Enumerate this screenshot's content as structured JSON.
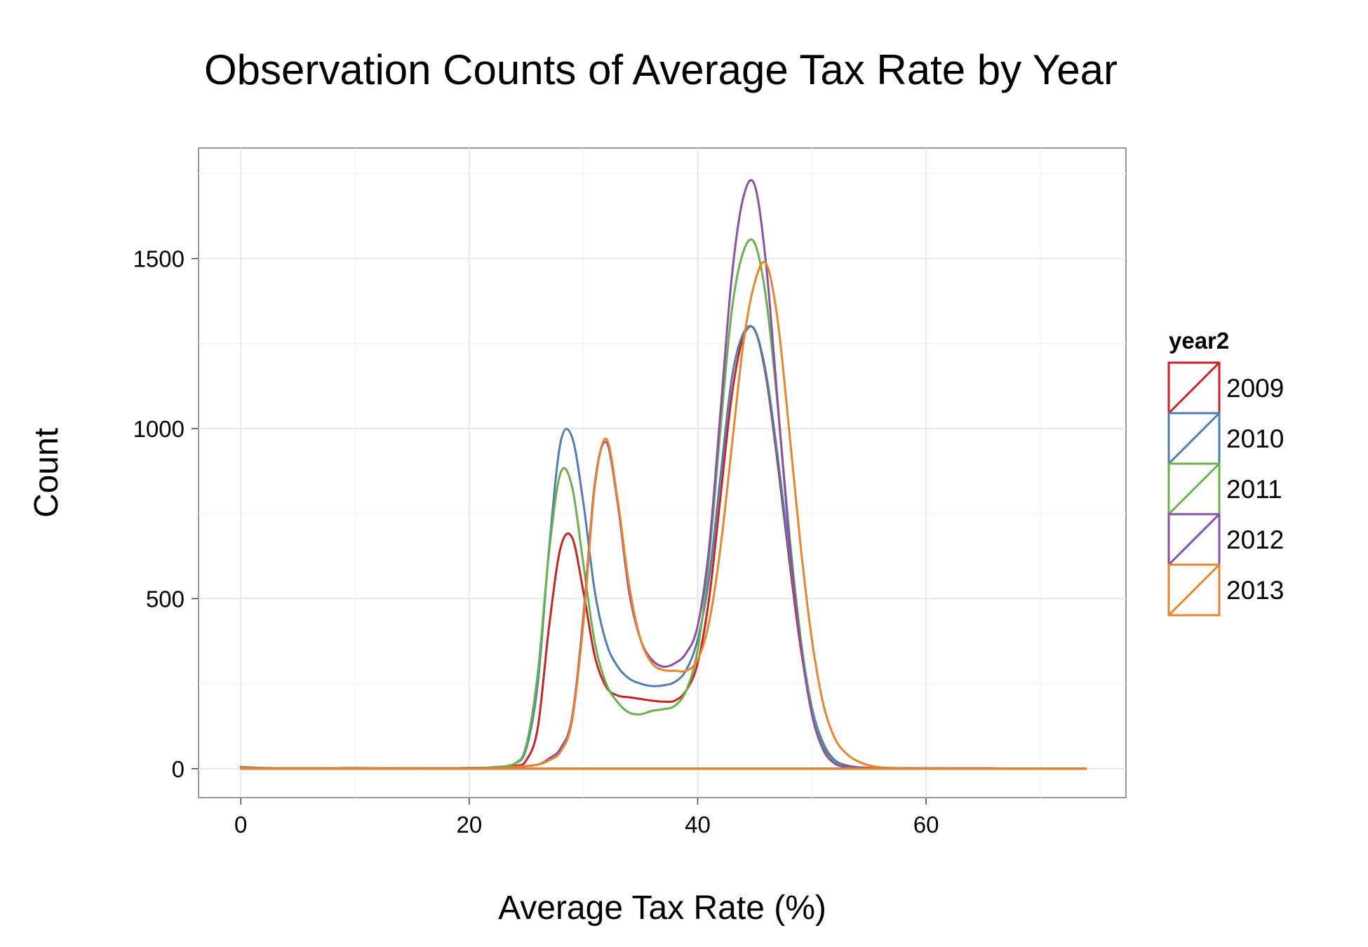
{
  "chart_data": {
    "type": "line",
    "title": "Observation Counts of Average Tax Rate by Year",
    "xlabel": "Average Tax Rate (%)",
    "ylabel": "Count",
    "xlim": [
      -3.7,
      77.5
    ],
    "ylim": [
      -85,
      1825
    ],
    "xticks": [
      0,
      20,
      40,
      60
    ],
    "yticks": [
      0,
      500,
      1000,
      1500
    ],
    "xtick_labels": [
      "0",
      "20",
      "40",
      "60"
    ],
    "ytick_labels": [
      "0",
      "500",
      "1000",
      "1500"
    ],
    "grid": true,
    "legend_position": "right",
    "legend_title": "year2",
    "series": [
      {
        "name": "2009",
        "color": "#cc2222",
        "x": [
          0,
          2,
          5,
          10,
          15,
          20,
          22,
          24,
          25,
          26,
          27,
          28,
          29,
          30,
          31,
          32,
          33,
          34,
          35,
          36,
          37,
          38,
          39,
          40,
          41,
          42,
          43,
          44,
          45,
          46,
          47,
          48,
          49,
          50,
          51,
          52,
          53,
          54,
          56,
          60,
          65,
          70,
          74
        ],
        "y": [
          5,
          2,
          1,
          2,
          1,
          2,
          3,
          8,
          25,
          120,
          420,
          650,
          680,
          520,
          330,
          240,
          215,
          210,
          205,
          200,
          197,
          200,
          230,
          310,
          500,
          800,
          1100,
          1270,
          1290,
          1150,
          900,
          620,
          360,
          170,
          70,
          25,
          10,
          4,
          2,
          1,
          1,
          0,
          0
        ]
      },
      {
        "name": "2010",
        "color": "#4f7db5",
        "x": [
          0,
          2,
          5,
          10,
          15,
          20,
          22,
          24,
          25,
          26,
          27,
          28,
          29,
          30,
          31,
          32,
          33,
          34,
          35,
          36,
          37,
          38,
          39,
          40,
          41,
          42,
          43,
          44,
          45,
          46,
          47,
          48,
          49,
          50,
          51,
          52,
          53,
          54,
          56,
          60,
          65,
          70,
          74
        ],
        "y": [
          5,
          2,
          1,
          2,
          1,
          2,
          4,
          15,
          60,
          250,
          650,
          960,
          975,
          780,
          520,
          370,
          300,
          265,
          250,
          243,
          245,
          255,
          290,
          380,
          560,
          860,
          1150,
          1280,
          1290,
          1160,
          920,
          640,
          380,
          180,
          75,
          25,
          8,
          3,
          1,
          1,
          1,
          0,
          0
        ]
      },
      {
        "name": "2011",
        "color": "#6ab04c",
        "x": [
          0,
          2,
          5,
          10,
          15,
          20,
          22,
          24,
          25,
          26,
          27,
          28,
          29,
          30,
          31,
          32,
          33,
          34,
          35,
          36,
          37,
          38,
          39,
          40,
          41,
          42,
          43,
          44,
          45,
          46,
          47,
          48,
          49,
          50,
          51,
          52,
          53,
          54,
          56,
          60,
          65,
          70,
          74
        ],
        "y": [
          3,
          2,
          1,
          1,
          1,
          2,
          4,
          15,
          70,
          280,
          640,
          870,
          830,
          600,
          370,
          250,
          195,
          165,
          160,
          170,
          175,
          185,
          230,
          350,
          620,
          1000,
          1350,
          1520,
          1545,
          1380,
          1070,
          700,
          390,
          170,
          60,
          18,
          5,
          2,
          1,
          1,
          0,
          0,
          0
        ]
      },
      {
        "name": "2012",
        "color": "#8a4fa8",
        "x": [
          0,
          2,
          5,
          10,
          15,
          20,
          22,
          24,
          26,
          27,
          28,
          29,
          30,
          31,
          32,
          33,
          34,
          35,
          36,
          37,
          38,
          39,
          40,
          41,
          42,
          43,
          44,
          45,
          46,
          47,
          48,
          49,
          50,
          51,
          52,
          53,
          54,
          56,
          60,
          65,
          70,
          74
        ],
        "y": [
          2,
          1,
          1,
          1,
          1,
          1,
          2,
          5,
          12,
          30,
          60,
          150,
          450,
          840,
          960,
          780,
          520,
          380,
          320,
          300,
          310,
          340,
          420,
          650,
          1050,
          1450,
          1680,
          1715,
          1480,
          1080,
          680,
          370,
          160,
          55,
          15,
          5,
          2,
          1,
          1,
          0,
          0,
          0
        ]
      },
      {
        "name": "2013",
        "color": "#e7852a",
        "x": [
          0,
          2,
          5,
          10,
          15,
          20,
          22,
          24,
          26,
          27,
          28,
          29,
          30,
          31,
          32,
          33,
          34,
          35,
          36,
          37,
          38,
          39,
          40,
          41,
          42,
          43,
          44,
          45,
          46,
          47,
          48,
          49,
          50,
          51,
          52,
          53,
          54,
          55,
          56,
          58,
          60,
          65,
          70,
          74
        ],
        "y": [
          3,
          2,
          1,
          2,
          1,
          1,
          2,
          5,
          12,
          25,
          50,
          140,
          430,
          830,
          970,
          790,
          540,
          380,
          310,
          290,
          288,
          288,
          320,
          430,
          650,
          950,
          1250,
          1430,
          1485,
          1320,
          1000,
          660,
          380,
          190,
          90,
          45,
          22,
          10,
          4,
          1,
          1,
          0,
          0,
          0
        ]
      }
    ]
  }
}
